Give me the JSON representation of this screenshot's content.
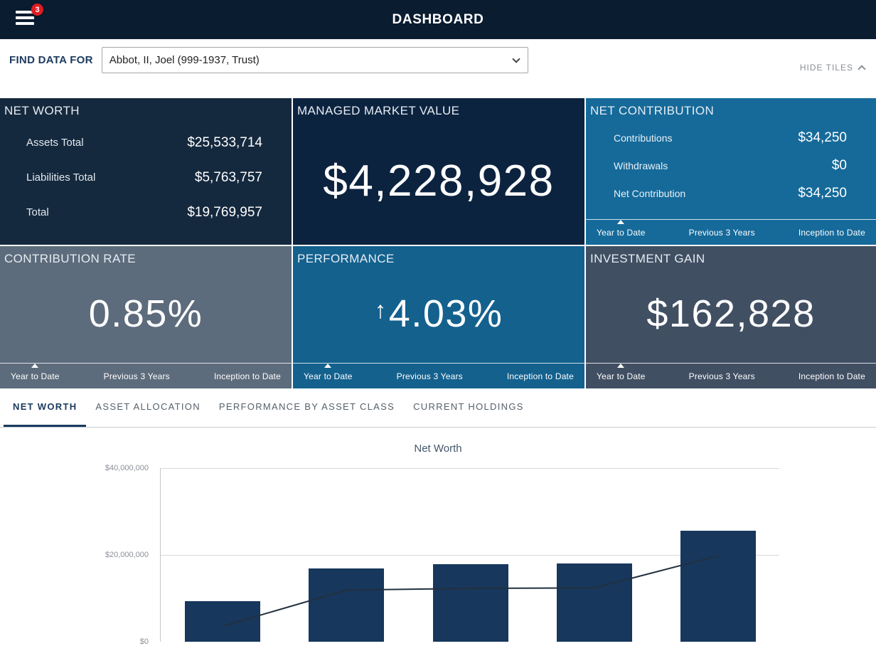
{
  "header": {
    "title": "DASHBOARD",
    "menu_badge": "3"
  },
  "find_bar": {
    "label": "FIND DATA FOR",
    "selected_entity": "Abbot, II, Joel (999-1937, Trust)",
    "hide_tiles_label": "HIDE TILES"
  },
  "tiles": {
    "net_worth": {
      "title": "NET WORTH",
      "rows": [
        {
          "label": "Assets Total",
          "value": "$25,533,714"
        },
        {
          "label": "Liabilities Total",
          "value": "$5,763,757"
        },
        {
          "label": "Total",
          "value": "$19,769,957"
        }
      ]
    },
    "managed_market_value": {
      "title": "MANAGED MARKET VALUE",
      "value": "$4,228,928"
    },
    "net_contribution": {
      "title": "NET CONTRIBUTION",
      "rows": [
        {
          "label": "Contributions",
          "value": "$34,250"
        },
        {
          "label": "Withdrawals",
          "value": "$0"
        },
        {
          "label": "Net Contribution",
          "value": "$34,250"
        }
      ],
      "periods": [
        "Year to Date",
        "Previous 3 Years",
        "Inception to Date"
      ],
      "selected_period": "Year to Date"
    },
    "contribution_rate": {
      "title": "CONTRIBUTION RATE",
      "value": "0.85%",
      "periods": [
        "Year to Date",
        "Previous 3 Years",
        "Inception to Date"
      ],
      "selected_period": "Year to Date"
    },
    "performance": {
      "title": "PERFORMANCE",
      "value": "4.03%",
      "trend_arrow": "↑",
      "trend_direction": "up",
      "periods": [
        "Year to Date",
        "Previous 3 Years",
        "Inception to Date"
      ],
      "selected_period": "Year to Date"
    },
    "investment_gain": {
      "title": "INVESTMENT GAIN",
      "value": "$162,828",
      "periods": [
        "Year to Date",
        "Previous 3 Years",
        "Inception to Date"
      ],
      "selected_period": "Year to Date"
    }
  },
  "section_tabs": [
    {
      "label": "NET WORTH",
      "active": true
    },
    {
      "label": "ASSET ALLOCATION",
      "active": false
    },
    {
      "label": "PERFORMANCE BY ASSET CLASS",
      "active": false
    },
    {
      "label": "CURRENT HOLDINGS",
      "active": false
    }
  ],
  "chart_data": {
    "type": "bar",
    "title": "Net Worth",
    "categories": [
      "",
      "",
      "",
      "",
      ""
    ],
    "series": [
      {
        "name": "bars",
        "type": "bar",
        "values": [
          9300000,
          16900000,
          17800000,
          18100000,
          25500000
        ]
      },
      {
        "name": "line",
        "type": "line",
        "values": [
          3600000,
          11900000,
          12300000,
          12400000,
          19800000
        ]
      }
    ],
    "ylim": [
      0,
      40000000
    ],
    "yticks": [
      {
        "label": "$40,000,000",
        "value": 40000000
      },
      {
        "label": "$20,000,000",
        "value": 20000000
      },
      {
        "label": "$0",
        "value": 0
      }
    ],
    "grid": true,
    "legend": "none",
    "layout_note": "x-axis category labels cut off by bottom edge of screen",
    "bar_color": "#17375c",
    "line_color": "#22303f"
  },
  "colors": {
    "header_bg": "#0a1c30",
    "accent_navy": "#1b3a5e",
    "badge_red": "#e01b22",
    "tile_net_worth": "#15293e",
    "tile_managed_market_value": "#0c2340",
    "tile_net_contribution": "#156a9a",
    "tile_contribution_rate": "#5d6c7c",
    "tile_performance": "#14618e",
    "tile_investment_gain": "#414f63"
  }
}
